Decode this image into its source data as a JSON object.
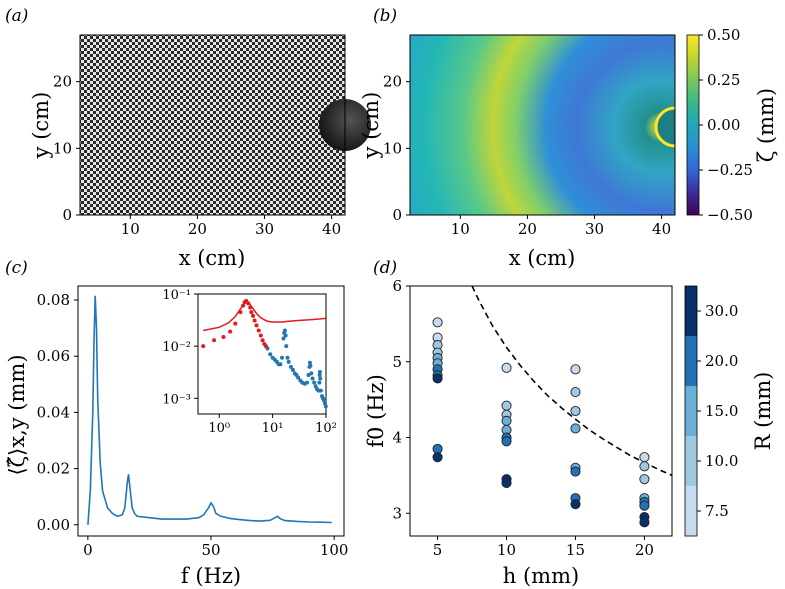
{
  "chart_data": [
    {
      "panel": "(a)",
      "type": "image",
      "xlabel": "x (cm)",
      "ylabel": "y (cm)",
      "xlim": [
        2.5,
        42
      ],
      "ylim": [
        0,
        27
      ],
      "xticks": [
        10,
        20,
        30,
        40
      ],
      "yticks": [
        0,
        10,
        20
      ],
      "content": "checkerboard pattern with cylinder"
    },
    {
      "panel": "(b)",
      "type": "heatmap",
      "xlabel": "x (cm)",
      "ylabel": "y (cm)",
      "xlim": [
        2.5,
        42
      ],
      "ylim": [
        0,
        27
      ],
      "xticks": [
        10,
        20,
        30,
        40
      ],
      "yticks": [
        0,
        10,
        20
      ],
      "colorbar": {
        "label": "ζ (mm)",
        "range": [
          -0.5,
          0.5
        ],
        "ticks": [
          "0.50",
          "0.25",
          "0.00",
          "−0.25",
          "−0.50"
        ],
        "colormap": "viridis"
      }
    },
    {
      "panel": "(c)",
      "type": "line",
      "xlabel": "f (Hz)",
      "ylabel": "⟨ζ̂⟩x,y (mm)",
      "xlim": [
        -4,
        104
      ],
      "ylim": [
        -0.004,
        0.085
      ],
      "xticks": [
        0,
        50,
        100
      ],
      "yticks": [
        "0.00",
        "0.02",
        "0.04",
        "0.06",
        "0.08"
      ],
      "x": [
        0,
        1,
        2,
        2.5,
        3,
        3.5,
        4,
        5,
        6,
        8,
        10,
        12,
        14,
        15,
        16,
        16.5,
        17,
        18,
        19,
        20,
        25,
        30,
        35,
        40,
        45,
        47,
        49,
        50,
        51,
        52,
        54,
        58,
        62,
        66,
        70,
        74,
        76,
        77,
        78,
        80,
        85,
        90,
        95,
        99
      ],
      "y": [
        0,
        0.012,
        0.04,
        0.065,
        0.0815,
        0.07,
        0.045,
        0.022,
        0.012,
        0.006,
        0.004,
        0.003,
        0.0035,
        0.006,
        0.015,
        0.018,
        0.014,
        0.006,
        0.004,
        0.003,
        0.0025,
        0.002,
        0.002,
        0.002,
        0.0025,
        0.0035,
        0.006,
        0.0078,
        0.0065,
        0.004,
        0.003,
        0.0022,
        0.0018,
        0.0015,
        0.0013,
        0.0016,
        0.0025,
        0.003,
        0.0022,
        0.0015,
        0.0012,
        0.001,
        0.0009,
        0.0008
      ],
      "inset": {
        "type": "scatter",
        "xscale": "log",
        "yscale": "log",
        "xlim": [
          0.4,
          100
        ],
        "ylim": [
          0.0005,
          0.1
        ],
        "xticks": [
          "10⁰",
          "10¹",
          "10²"
        ],
        "yticks": [
          "10⁻¹",
          "10⁻²",
          "10⁻³"
        ],
        "red_points": {
          "x": [
            0.5,
            0.8,
            1.2,
            1.6,
            2.0,
            2.5,
            2.8,
            3.0,
            3.2,
            3.5,
            3.8,
            4.0,
            4.3,
            4.6,
            5,
            5.5,
            6,
            6.5,
            7,
            7.5
          ],
          "y": [
            0.01,
            0.013,
            0.015,
            0.019,
            0.027,
            0.045,
            0.06,
            0.07,
            0.074,
            0.066,
            0.055,
            0.045,
            0.038,
            0.031,
            0.025,
            0.02,
            0.016,
            0.013,
            0.011,
            0.01
          ]
        },
        "blue_points": {
          "x": [
            8,
            9,
            10,
            11,
            12,
            13,
            14,
            15,
            16,
            16.5,
            17,
            17.5,
            18,
            19,
            20,
            22,
            24,
            26,
            28,
            30,
            33,
            36,
            40,
            44,
            47,
            49,
            50,
            51,
            53,
            56,
            60,
            64,
            68,
            72,
            75,
            76,
            77,
            78,
            80,
            84,
            88,
            92,
            96,
            99
          ],
          "y": [
            0.009,
            0.007,
            0.006,
            0.0055,
            0.005,
            0.0045,
            0.0045,
            0.006,
            0.014,
            0.018,
            0.02,
            0.016,
            0.01,
            0.006,
            0.005,
            0.004,
            0.0035,
            0.003,
            0.0028,
            0.0025,
            0.0022,
            0.002,
            0.0019,
            0.002,
            0.0028,
            0.004,
            0.0048,
            0.0042,
            0.003,
            0.0024,
            0.002,
            0.0017,
            0.0015,
            0.0014,
            0.002,
            0.0028,
            0.0032,
            0.0024,
            0.0014,
            0.0011,
            0.001,
            0.0009,
            0.0008,
            0.0007
          ]
        },
        "fit_curve": {
          "x": [
            0.5,
            1,
            1.5,
            2,
            2.5,
            3,
            3.2,
            3.5,
            4,
            5,
            6,
            7,
            8,
            10,
            15,
            20,
            30,
            50,
            70,
            99
          ],
          "y": [
            0.02,
            0.023,
            0.028,
            0.037,
            0.052,
            0.068,
            0.073,
            0.07,
            0.058,
            0.042,
            0.035,
            0.032,
            0.03,
            0.029,
            0.029,
            0.03,
            0.031,
            0.032,
            0.033,
            0.034
          ]
        }
      }
    },
    {
      "panel": "(d)",
      "type": "scatter",
      "xlabel": "h (mm)",
      "ylabel": "f0 (Hz)",
      "xlim": [
        3,
        22
      ],
      "ylim": [
        2.7,
        6
      ],
      "xticks": [
        5,
        10,
        15,
        20
      ],
      "yticks": [
        3,
        4,
        5,
        6
      ],
      "series": [
        {
          "R": 7.5,
          "color": "#c6dbef",
          "x": [
            5,
            5,
            10,
            15,
            20
          ],
          "y": [
            5.52,
            5.32,
            4.92,
            4.9,
            3.74
          ]
        },
        {
          "R": 10.0,
          "color": "#9ecae1",
          "x": [
            5,
            5,
            10,
            10,
            15,
            15,
            20,
            20
          ],
          "y": [
            5.22,
            5.12,
            4.42,
            4.3,
            4.6,
            4.35,
            3.62,
            3.45
          ]
        },
        {
          "R": 15.0,
          "color": "#6baed6",
          "x": [
            5,
            5,
            10,
            10,
            15,
            15,
            20
          ],
          "y": [
            5.05,
            4.98,
            4.22,
            4.1,
            4.12,
            3.6,
            3.2
          ]
        },
        {
          "R": 20.0,
          "color": "#2171b5",
          "x": [
            5,
            5,
            5,
            10,
            10,
            15,
            15,
            20,
            20
          ],
          "y": [
            4.9,
            4.82,
            3.85,
            4.0,
            3.95,
            3.55,
            3.2,
            3.15,
            3.1
          ]
        },
        {
          "R": 30.0,
          "color": "#08306b",
          "x": [
            5,
            5,
            10,
            10,
            15,
            20,
            20
          ],
          "y": [
            4.78,
            3.74,
            3.45,
            3.4,
            3.12,
            2.95,
            2.88
          ]
        }
      ],
      "dashed_curve": {
        "x": [
          7.5,
          8,
          9,
          10,
          11,
          12,
          13,
          14,
          15,
          16,
          17,
          18,
          19,
          20,
          21,
          22
        ],
        "y": [
          6.0,
          5.81,
          5.47,
          5.19,
          4.95,
          4.74,
          4.55,
          4.39,
          4.24,
          4.1,
          3.98,
          3.87,
          3.76,
          3.67,
          3.58,
          3.5
        ]
      },
      "colorbar": {
        "label": "R (mm)",
        "ticks": [
          "30.0",
          "20.0",
          "15.0",
          "10.0",
          "7.5"
        ],
        "colors": [
          "#08306b",
          "#2171b5",
          "#6baed6",
          "#9ecae1",
          "#c6dbef"
        ]
      }
    }
  ]
}
